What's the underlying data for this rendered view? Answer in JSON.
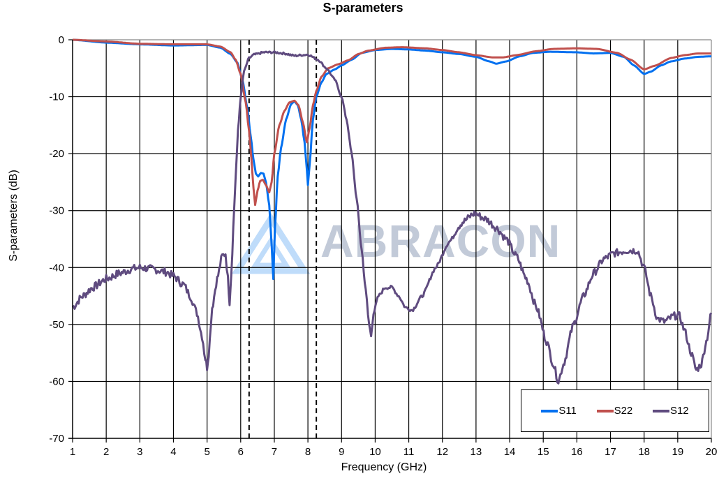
{
  "chart_data": {
    "type": "line",
    "title": "S-parameters",
    "xlabel": "Frequency (GHz)",
    "ylabel": "S-parameters (dB)",
    "xlim": [
      1,
      20
    ],
    "ylim": [
      -70,
      0
    ],
    "xticks": [
      1,
      2,
      3,
      4,
      5,
      6,
      7,
      8,
      9,
      10,
      11,
      12,
      13,
      14,
      15,
      16,
      17,
      18,
      19,
      20
    ],
    "yticks": [
      0,
      -10,
      -20,
      -30,
      -40,
      -50,
      -60,
      -70
    ],
    "grid": true,
    "legend_position": "lower right",
    "watermark": "ABRACON",
    "reference_lines": [
      {
        "style": "dashed",
        "x": 6.25
      },
      {
        "style": "dashed",
        "x": 8.25
      }
    ],
    "series": [
      {
        "name": "S11",
        "color": "#0070F0",
        "points": [
          [
            1,
            0
          ],
          [
            2,
            -0.5
          ],
          [
            3,
            -0.8
          ],
          [
            4,
            -1.0
          ],
          [
            5,
            -0.9
          ],
          [
            5.4,
            -1.4
          ],
          [
            5.7,
            -2.5
          ],
          [
            5.9,
            -4
          ],
          [
            6.05,
            -7
          ],
          [
            6.2,
            -12
          ],
          [
            6.3,
            -17
          ],
          [
            6.38,
            -21
          ],
          [
            6.45,
            -23.5
          ],
          [
            6.52,
            -24
          ],
          [
            6.6,
            -23.4
          ],
          [
            6.68,
            -23.5
          ],
          [
            6.75,
            -25
          ],
          [
            6.85,
            -29
          ],
          [
            6.92,
            -36
          ],
          [
            6.97,
            -42
          ],
          [
            7.02,
            -33
          ],
          [
            7.1,
            -24
          ],
          [
            7.2,
            -19
          ],
          [
            7.35,
            -14
          ],
          [
            7.5,
            -11.3
          ],
          [
            7.6,
            -10.8
          ],
          [
            7.7,
            -11.5
          ],
          [
            7.8,
            -14
          ],
          [
            7.9,
            -18
          ],
          [
            7.97,
            -23
          ],
          [
            8.0,
            -25.5
          ],
          [
            8.05,
            -22
          ],
          [
            8.15,
            -14
          ],
          [
            8.25,
            -10
          ],
          [
            8.4,
            -7.5
          ],
          [
            8.55,
            -6
          ],
          [
            8.8,
            -5.2
          ],
          [
            9.0,
            -4.5
          ],
          [
            9.3,
            -3.5
          ],
          [
            9.6,
            -2.3
          ],
          [
            10,
            -1.8
          ],
          [
            10.5,
            -1.6
          ],
          [
            11,
            -1.7
          ],
          [
            11.5,
            -1.9
          ],
          [
            12,
            -2.2
          ],
          [
            12.5,
            -2.5
          ],
          [
            13,
            -3.0
          ],
          [
            13.4,
            -3.8
          ],
          [
            13.6,
            -4.2
          ],
          [
            13.9,
            -3.8
          ],
          [
            14.3,
            -2.9
          ],
          [
            14.7,
            -2.3
          ],
          [
            15.2,
            -2.1
          ],
          [
            16,
            -2.2
          ],
          [
            16.5,
            -2.4
          ],
          [
            17,
            -2.3
          ],
          [
            17.4,
            -3.0
          ],
          [
            17.7,
            -4.5
          ],
          [
            18,
            -6.0
          ],
          [
            18.2,
            -5.6
          ],
          [
            18.5,
            -4.5
          ],
          [
            18.8,
            -3.8
          ],
          [
            19.2,
            -3.3
          ],
          [
            19.6,
            -3.0
          ],
          [
            20,
            -2.9
          ]
        ]
      },
      {
        "name": "S22",
        "color": "#C0504D",
        "points": [
          [
            1,
            0
          ],
          [
            2,
            -0.3
          ],
          [
            3,
            -0.7
          ],
          [
            4,
            -0.8
          ],
          [
            5,
            -0.8
          ],
          [
            5.4,
            -1.2
          ],
          [
            5.7,
            -2.2
          ],
          [
            5.85,
            -3.5
          ],
          [
            6.0,
            -6
          ],
          [
            6.15,
            -11
          ],
          [
            6.25,
            -16
          ],
          [
            6.32,
            -21
          ],
          [
            6.38,
            -26
          ],
          [
            6.43,
            -29
          ],
          [
            6.5,
            -26.5
          ],
          [
            6.58,
            -24.8
          ],
          [
            6.66,
            -24.6
          ],
          [
            6.75,
            -25.5
          ],
          [
            6.85,
            -26.8
          ],
          [
            6.92,
            -25
          ],
          [
            7.0,
            -20
          ],
          [
            7.15,
            -15
          ],
          [
            7.3,
            -12.5
          ],
          [
            7.45,
            -11
          ],
          [
            7.6,
            -10.7
          ],
          [
            7.72,
            -11.5
          ],
          [
            7.85,
            -14.5
          ],
          [
            7.97,
            -18
          ],
          [
            8.05,
            -15.5
          ],
          [
            8.15,
            -11.5
          ],
          [
            8.25,
            -9
          ],
          [
            8.4,
            -6.5
          ],
          [
            8.6,
            -5
          ],
          [
            8.9,
            -4.3
          ],
          [
            9.2,
            -3.6
          ],
          [
            9.5,
            -2.5
          ],
          [
            9.8,
            -1.9
          ],
          [
            10.3,
            -1.4
          ],
          [
            10.8,
            -1.3
          ],
          [
            11.5,
            -1.5
          ],
          [
            12,
            -1.8
          ],
          [
            12.5,
            -2.2
          ],
          [
            13,
            -2.7
          ],
          [
            13.5,
            -3.1
          ],
          [
            13.8,
            -3.1
          ],
          [
            14.2,
            -2.7
          ],
          [
            14.8,
            -2.0
          ],
          [
            15.3,
            -1.6
          ],
          [
            16,
            -1.5
          ],
          [
            16.6,
            -1.6
          ],
          [
            17.2,
            -2.3
          ],
          [
            17.6,
            -3.5
          ],
          [
            18,
            -5.2
          ],
          [
            18.3,
            -4.6
          ],
          [
            18.8,
            -3.2
          ],
          [
            19.2,
            -2.7
          ],
          [
            19.6,
            -2.4
          ],
          [
            20,
            -2.4
          ]
        ]
      },
      {
        "name": "S12",
        "color": "#5F4B7F",
        "points": [
          [
            1,
            -47
          ],
          [
            1.3,
            -45
          ],
          [
            1.6,
            -43.5
          ],
          [
            2,
            -42
          ],
          [
            2.4,
            -41
          ],
          [
            2.8,
            -40.2
          ],
          [
            3,
            -40
          ],
          [
            3.4,
            -40.3
          ],
          [
            3.8,
            -40.8
          ],
          [
            4,
            -41.5
          ],
          [
            4.3,
            -43
          ],
          [
            4.5,
            -45
          ],
          [
            4.7,
            -48
          ],
          [
            4.85,
            -52
          ],
          [
            4.95,
            -56
          ],
          [
            5.0,
            -57.5
          ],
          [
            5.05,
            -55
          ],
          [
            5.15,
            -47
          ],
          [
            5.3,
            -42
          ],
          [
            5.45,
            -38
          ],
          [
            5.55,
            -37.5
          ],
          [
            5.62,
            -42
          ],
          [
            5.67,
            -46
          ],
          [
            5.72,
            -41
          ],
          [
            5.78,
            -33
          ],
          [
            5.85,
            -24
          ],
          [
            5.92,
            -16
          ],
          [
            6.0,
            -10
          ],
          [
            6.1,
            -5.5
          ],
          [
            6.25,
            -3.2
          ],
          [
            6.4,
            -2.6
          ],
          [
            6.7,
            -2.2
          ],
          [
            7.0,
            -2.2
          ],
          [
            7.3,
            -2.4
          ],
          [
            7.6,
            -2.8
          ],
          [
            8.0,
            -2.6
          ],
          [
            8.3,
            -3.5
          ],
          [
            8.55,
            -5
          ],
          [
            8.8,
            -7
          ],
          [
            9.0,
            -10
          ],
          [
            9.15,
            -14
          ],
          [
            9.3,
            -20
          ],
          [
            9.45,
            -28
          ],
          [
            9.6,
            -37
          ],
          [
            9.72,
            -44
          ],
          [
            9.82,
            -50
          ],
          [
            9.88,
            -52
          ],
          [
            9.95,
            -48
          ],
          [
            10.1,
            -45
          ],
          [
            10.3,
            -43.5
          ],
          [
            10.5,
            -43.5
          ],
          [
            10.7,
            -45
          ],
          [
            10.9,
            -47
          ],
          [
            11.1,
            -47.5
          ],
          [
            11.4,
            -45
          ],
          [
            11.8,
            -40
          ],
          [
            12.2,
            -35.5
          ],
          [
            12.6,
            -32
          ],
          [
            12.95,
            -30.5
          ],
          [
            13.3,
            -31.5
          ],
          [
            13.6,
            -33
          ],
          [
            13.9,
            -35
          ],
          [
            14.2,
            -38
          ],
          [
            14.5,
            -42
          ],
          [
            14.8,
            -47
          ],
          [
            15.1,
            -53
          ],
          [
            15.3,
            -57
          ],
          [
            15.45,
            -60
          ],
          [
            15.6,
            -57
          ],
          [
            15.9,
            -50
          ],
          [
            16.2,
            -45
          ],
          [
            16.5,
            -41
          ],
          [
            16.8,
            -38.5
          ],
          [
            17.1,
            -37.5
          ],
          [
            17.5,
            -37
          ],
          [
            17.8,
            -37
          ],
          [
            18.0,
            -40
          ],
          [
            18.2,
            -45
          ],
          [
            18.4,
            -49
          ],
          [
            18.6,
            -49.5
          ],
          [
            18.9,
            -48.5
          ],
          [
            19.05,
            -48.5
          ],
          [
            19.2,
            -51
          ],
          [
            19.4,
            -55
          ],
          [
            19.55,
            -58
          ],
          [
            19.7,
            -57
          ],
          [
            19.85,
            -53
          ],
          [
            20,
            -48
          ]
        ]
      }
    ]
  },
  "legend": {
    "items": [
      {
        "label": "S11",
        "color": "#0070F0"
      },
      {
        "label": "S22",
        "color": "#C0504D"
      },
      {
        "label": "S12",
        "color": "#5F4B7F"
      }
    ]
  }
}
